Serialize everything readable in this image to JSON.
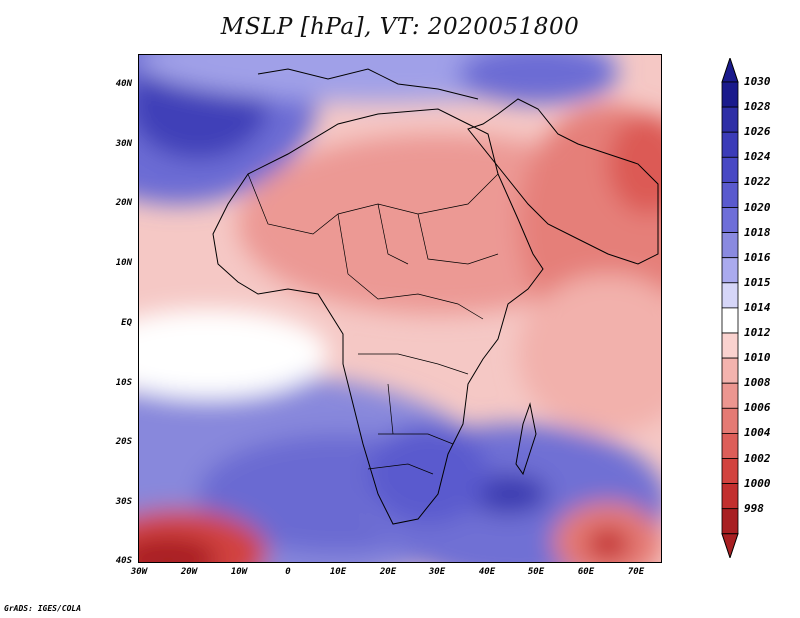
{
  "title": "MSLP [hPa], VT: 2020051800",
  "credit": "GrADS: IGES/COLA",
  "lat_labels": [
    "40N",
    "30N",
    "20N",
    "10N",
    "EQ",
    "10S",
    "20S",
    "30S",
    "40S"
  ],
  "lon_labels": [
    "30W",
    "20W",
    "10W",
    "0",
    "10E",
    "20E",
    "30E",
    "40E",
    "50E",
    "60E",
    "70E"
  ],
  "colorbar": {
    "levels": [
      "1030",
      "1028",
      "1026",
      "1024",
      "1022",
      "1020",
      "1018",
      "1016",
      "1015",
      "1014",
      "1012",
      "1010",
      "1008",
      "1006",
      "1004",
      "1002",
      "1000",
      "998"
    ],
    "colors": [
      "#1a1a8c",
      "#2e2ea6",
      "#3b3bb8",
      "#4848c4",
      "#5a5ace",
      "#6e6ed8",
      "#8a8ae0",
      "#aaaaee",
      "#d6d6f8",
      "#ffffff",
      "#fad2cf",
      "#f3b3ae",
      "#ec9690",
      "#e57a74",
      "#dd5e59",
      "#d2433f",
      "#c22f2e",
      "#a81f22"
    ],
    "top_color": "#1a1a8c",
    "bottom_color": "#a81f22"
  }
}
